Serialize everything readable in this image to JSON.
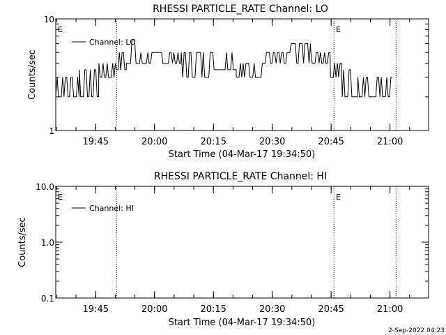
{
  "footer": {
    "timestamp": "2-Sep-2022 04:23"
  },
  "chart_data": [
    {
      "type": "line",
      "title": "RHESSI PARTICLE_RATE Channel: LO",
      "xlabel": "Start Time (04-Mar-17 19:34:50)",
      "ylabel": "Counts/sec",
      "yscale": "log",
      "ylim": [
        1,
        10
      ],
      "y_ticks": [
        "1",
        "10"
      ],
      "xlim_minutes_after_start": [
        0,
        95
      ],
      "x_ticks": [
        {
          "label": "19:45",
          "minute": 10.17
        },
        {
          "label": "20:00",
          "minute": 25.17
        },
        {
          "label": "20:15",
          "minute": 40.17
        },
        {
          "label": "20:30",
          "minute": 55.17
        },
        {
          "label": "20:45",
          "minute": 70.17
        },
        {
          "label": "21:00",
          "minute": 85.17
        }
      ],
      "vlines_minutes": [
        15.5,
        70.9,
        86.7
      ],
      "annotations": [
        {
          "text": "E",
          "minute": 0.5
        },
        {
          "text": "E",
          "minute": 71.4
        }
      ],
      "legend": {
        "position": "top-left",
        "entries": [
          "Channel: LO"
        ]
      },
      "series": [
        {
          "name": "Channel: LO",
          "segments": [
            {
              "t0": 0,
              "t1": 6,
              "lo": 2,
              "hi": 3
            },
            {
              "t0": 6,
              "t1": 11,
              "lo": 2,
              "hi": 3.5
            },
            {
              "t0": 11,
              "t1": 15.5,
              "lo": 3,
              "hi": 4
            },
            {
              "t0": 15.5,
              "t1": 18,
              "lo": 3.5,
              "hi": 5
            },
            {
              "t0": 18,
              "t1": 21,
              "lo": 4,
              "hi": 6.5
            },
            {
              "t0": 21,
              "t1": 32,
              "lo": 4,
              "hi": 5
            },
            {
              "t0": 32,
              "t1": 40,
              "lo": 3,
              "hi": 5
            },
            {
              "t0": 40,
              "t1": 46,
              "lo": 3.5,
              "hi": 5
            },
            {
              "t0": 46,
              "t1": 53,
              "lo": 3,
              "hi": 4
            },
            {
              "t0": 53,
              "t1": 60,
              "lo": 4,
              "hi": 5
            },
            {
              "t0": 60,
              "t1": 65,
              "lo": 4,
              "hi": 6
            },
            {
              "t0": 65,
              "t1": 70,
              "lo": 4,
              "hi": 5
            },
            {
              "t0": 70,
              "t1": 73,
              "lo": 3,
              "hi": 4
            },
            {
              "t0": 73,
              "t1": 77,
              "lo": 2,
              "hi": 3.5
            },
            {
              "t0": 77,
              "t1": 86,
              "lo": 2,
              "hi": 3
            }
          ]
        }
      ]
    },
    {
      "type": "line",
      "title": "RHESSI PARTICLE_RATE Channel: HI",
      "xlabel": "Start Time (04-Mar-17 19:34:50)",
      "ylabel": "Counts/sec",
      "yscale": "log",
      "ylim": [
        0.1,
        10
      ],
      "y_ticks": [
        "0.1",
        "1.0",
        "10.0"
      ],
      "xlim_minutes_after_start": [
        0,
        95
      ],
      "x_ticks": [
        {
          "label": "19:45",
          "minute": 10.17
        },
        {
          "label": "20:00",
          "minute": 25.17
        },
        {
          "label": "20:15",
          "minute": 40.17
        },
        {
          "label": "20:30",
          "minute": 55.17
        },
        {
          "label": "20:45",
          "minute": 70.17
        },
        {
          "label": "21:00",
          "minute": 85.17
        }
      ],
      "vlines_minutes": [
        15.5,
        70.9,
        86.7
      ],
      "annotations": [
        {
          "text": "E",
          "minute": 0.5
        },
        {
          "text": "E",
          "minute": 71.4
        }
      ],
      "legend": {
        "position": "top-left",
        "entries": [
          "Channel: HI"
        ]
      },
      "series": [
        {
          "name": "Channel: HI",
          "segments": []
        }
      ]
    }
  ]
}
